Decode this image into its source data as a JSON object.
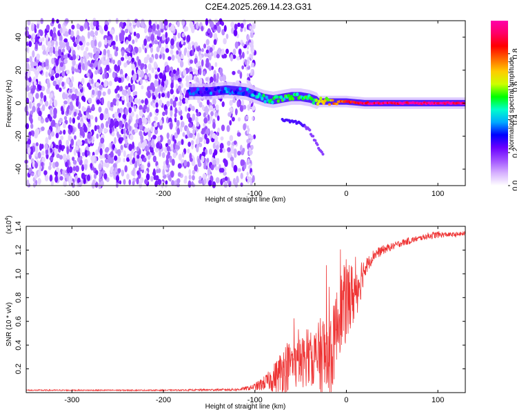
{
  "title": "C2E4.2025.269.14.23.G31",
  "chart_data": [
    {
      "type": "heatmap",
      "title": "C2E4.2025.269.14.23.G31",
      "xlabel": "Height of straight line (km)",
      "ylabel": "Frequency (Hz)",
      "xlim": [
        -350,
        130
      ],
      "ylim": [
        -50,
        50
      ],
      "xticks": [
        -300,
        -200,
        -100,
        0,
        100
      ],
      "yticks": [
        -40,
        -20,
        0,
        20,
        40
      ],
      "colorbar": {
        "label": "Normalized spectral amplitude",
        "range": [
          0,
          1
        ],
        "ticks": [
          0.0,
          0.2,
          0.4,
          0.6,
          0.8
        ],
        "colors": [
          "#ffffff",
          "#d6b0ff",
          "#a050ff",
          "#6a00ff",
          "#0000ff",
          "#00aaff",
          "#00ffcc",
          "#00ff00",
          "#ccff00",
          "#ffcc00",
          "#ff6600",
          "#ff0000",
          "#ff0066",
          "#ff00aa"
        ]
      },
      "noise_region": [
        -350,
        -110
      ],
      "signal_onset_km": -172,
      "ridge": {
        "x": [
          -172,
          -150,
          -130,
          -110,
          -100,
          -90,
          -80,
          -70,
          -60,
          -50,
          -40,
          -30,
          -20,
          -10,
          0,
          20,
          40,
          60,
          80,
          100,
          130
        ],
        "freq": [
          7,
          7,
          8,
          7,
          5,
          3,
          2,
          3,
          4,
          4,
          3,
          1,
          1,
          1,
          1,
          0,
          0,
          0,
          0,
          0,
          0
        ],
        "amplitude": [
          0.28,
          0.3,
          0.32,
          0.34,
          0.38,
          0.45,
          0.5,
          0.5,
          0.5,
          0.5,
          0.55,
          0.6,
          0.65,
          0.75,
          0.85,
          0.92,
          0.95,
          0.95,
          0.97,
          0.97,
          0.95
        ]
      },
      "side_branch": {
        "x": [
          -70,
          -60,
          -50,
          -45,
          -40,
          -35,
          -30,
          -25
        ],
        "freq": [
          -10,
          -11,
          -12,
          -14,
          -17,
          -22,
          -27,
          -31
        ]
      }
    },
    {
      "type": "line",
      "xlabel": "Height of straight line (km)",
      "ylabel": "SNR (10 * v/v)",
      "multiplier_label": "(x10",
      "multiplier_exp": "4",
      "multiplier_close": ")",
      "xlim": [
        -350,
        130
      ],
      "ylim": [
        0,
        1.4
      ],
      "xticks": [
        -300,
        -200,
        -100,
        0,
        100
      ],
      "yticks": [
        0.2,
        0.4,
        0.6,
        0.8,
        1.0,
        1.2,
        1.4
      ],
      "line_color": "#ee3333",
      "series": [
        {
          "name": "SNR",
          "x": [
            -350,
            -200,
            -120,
            -105,
            -100,
            -95,
            -90,
            -85,
            -80,
            -75,
            -70,
            -65,
            -60,
            -55,
            -50,
            -45,
            -40,
            -35,
            -30,
            -25,
            -20,
            -15,
            -10,
            -5,
            0,
            5,
            10,
            15,
            20,
            25,
            30,
            40,
            50,
            60,
            70,
            80,
            90,
            100,
            110,
            120,
            130
          ],
          "base": [
            0.02,
            0.02,
            0.025,
            0.04,
            0.05,
            0.06,
            0.08,
            0.1,
            0.12,
            0.15,
            0.2,
            0.22,
            0.24,
            0.22,
            0.25,
            0.27,
            0.28,
            0.3,
            0.3,
            0.3,
            0.3,
            0.35,
            0.6,
            0.7,
            0.75,
            0.8,
            0.85,
            0.95,
            1.05,
            1.1,
            1.16,
            1.2,
            1.23,
            1.26,
            1.28,
            1.3,
            1.32,
            1.33,
            1.33,
            1.33,
            1.34
          ],
          "spread": [
            0.005,
            0.005,
            0.01,
            0.02,
            0.03,
            0.05,
            0.06,
            0.08,
            0.12,
            0.15,
            0.2,
            0.22,
            0.2,
            0.2,
            0.22,
            0.22,
            0.22,
            0.25,
            0.3,
            0.4,
            0.45,
            0.35,
            0.3,
            0.35,
            0.35,
            0.3,
            0.25,
            0.2,
            0.08,
            0.06,
            0.05,
            0.04,
            0.03,
            0.03,
            0.03,
            0.02,
            0.03,
            0.03,
            0.02,
            0.02,
            0.02
          ]
        }
      ]
    }
  ]
}
